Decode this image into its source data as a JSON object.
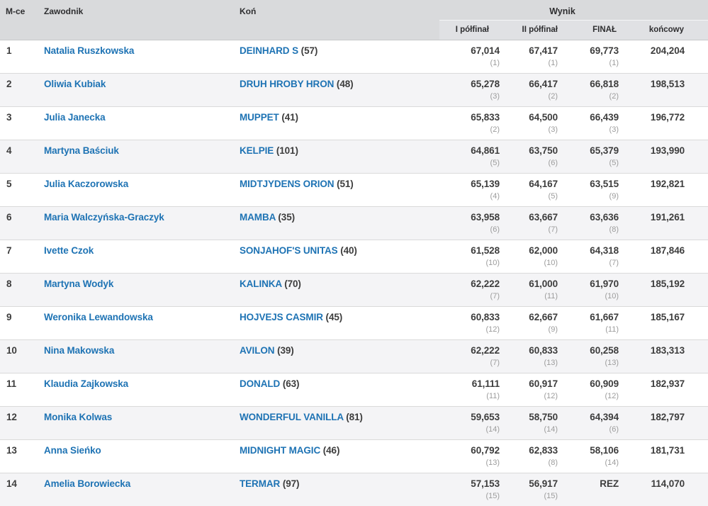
{
  "header": {
    "place": "M-ce",
    "rider": "Zawodnik",
    "horse": "Koń",
    "result_group": "Wynik",
    "sub": {
      "semi1": "I półfinał",
      "semi2": "II półfinał",
      "final": "FINAŁ",
      "total": "końcowy"
    }
  },
  "colors": {
    "link": "#1e73b4",
    "header_bg": "#d9dadc",
    "subheader_bg": "#e0e1e4",
    "stripe": "#f4f4f6",
    "row_border": "#dadada",
    "value_text": "#3d3d3d",
    "rank_text": "#9c9c9c"
  },
  "rows": [
    {
      "place": "1",
      "rider": "Natalia Ruszkowska",
      "horse": "DEINHARD S",
      "horse_no": "(57)",
      "semi1": "67,014",
      "semi1_rank": "(1)",
      "semi2": "67,417",
      "semi2_rank": "(1)",
      "final": "69,773",
      "final_rank": "(1)",
      "total": "204,204"
    },
    {
      "place": "2",
      "rider": "Oliwia Kubiak",
      "horse": "DRUH HROBY HRON",
      "horse_no": "(48)",
      "semi1": "65,278",
      "semi1_rank": "(3)",
      "semi2": "66,417",
      "semi2_rank": "(2)",
      "final": "66,818",
      "final_rank": "(2)",
      "total": "198,513"
    },
    {
      "place": "3",
      "rider": "Julia Janecka",
      "horse": "MUPPET",
      "horse_no": "(41)",
      "semi1": "65,833",
      "semi1_rank": "(2)",
      "semi2": "64,500",
      "semi2_rank": "(3)",
      "final": "66,439",
      "final_rank": "(3)",
      "total": "196,772"
    },
    {
      "place": "4",
      "rider": "Martyna Baściuk",
      "horse": "KELPIE",
      "horse_no": "(101)",
      "semi1": "64,861",
      "semi1_rank": "(5)",
      "semi2": "63,750",
      "semi2_rank": "(6)",
      "final": "65,379",
      "final_rank": "(5)",
      "total": "193,990"
    },
    {
      "place": "5",
      "rider": "Julia Kaczorowska",
      "horse": "MIDTJYDENS ORION",
      "horse_no": "(51)",
      "semi1": "65,139",
      "semi1_rank": "(4)",
      "semi2": "64,167",
      "semi2_rank": "(5)",
      "final": "63,515",
      "final_rank": "(9)",
      "total": "192,821"
    },
    {
      "place": "6",
      "rider": "Maria Walczyńska-Graczyk",
      "horse": "MAMBA",
      "horse_no": "(35)",
      "semi1": "63,958",
      "semi1_rank": "(6)",
      "semi2": "63,667",
      "semi2_rank": "(7)",
      "final": "63,636",
      "final_rank": "(8)",
      "total": "191,261"
    },
    {
      "place": "7",
      "rider": "Ivette Czok",
      "horse": "SONJAHOF'S UNITAS",
      "horse_no": "(40)",
      "semi1": "61,528",
      "semi1_rank": "(10)",
      "semi2": "62,000",
      "semi2_rank": "(10)",
      "final": "64,318",
      "final_rank": "(7)",
      "total": "187,846"
    },
    {
      "place": "8",
      "rider": "Martyna Wodyk",
      "horse": "KALINKA",
      "horse_no": "(70)",
      "semi1": "62,222",
      "semi1_rank": "(7)",
      "semi2": "61,000",
      "semi2_rank": "(11)",
      "final": "61,970",
      "final_rank": "(10)",
      "total": "185,192"
    },
    {
      "place": "9",
      "rider": "Weronika Lewandowska",
      "horse": "HOJVEJS CASMIR",
      "horse_no": "(45)",
      "semi1": "60,833",
      "semi1_rank": "(12)",
      "semi2": "62,667",
      "semi2_rank": "(9)",
      "final": "61,667",
      "final_rank": "(11)",
      "total": "185,167"
    },
    {
      "place": "10",
      "rider": "Nina Makowska",
      "horse": "AVILON",
      "horse_no": "(39)",
      "semi1": "62,222",
      "semi1_rank": "(7)",
      "semi2": "60,833",
      "semi2_rank": "(13)",
      "final": "60,258",
      "final_rank": "(13)",
      "total": "183,313"
    },
    {
      "place": "11",
      "rider": "Klaudia Zajkowska",
      "horse": "DONALD",
      "horse_no": "(63)",
      "semi1": "61,111",
      "semi1_rank": "(11)",
      "semi2": "60,917",
      "semi2_rank": "(12)",
      "final": "60,909",
      "final_rank": "(12)",
      "total": "182,937"
    },
    {
      "place": "12",
      "rider": "Monika Kolwas",
      "horse": "WONDERFUL VANILLA",
      "horse_no": "(81)",
      "semi1": "59,653",
      "semi1_rank": "(14)",
      "semi2": "58,750",
      "semi2_rank": "(14)",
      "final": "64,394",
      "final_rank": "(6)",
      "total": "182,797"
    },
    {
      "place": "13",
      "rider": "Anna Sieńko",
      "horse": "MIDNIGHT MAGIC",
      "horse_no": "(46)",
      "semi1": "60,792",
      "semi1_rank": "(13)",
      "semi2": "62,833",
      "semi2_rank": "(8)",
      "final": "58,106",
      "final_rank": "(14)",
      "total": "181,731"
    },
    {
      "place": "14",
      "rider": "Amelia Borowiecka",
      "horse": "TERMAR",
      "horse_no": "(97)",
      "semi1": "57,153",
      "semi1_rank": "(15)",
      "semi2": "56,917",
      "semi2_rank": "(15)",
      "final": "REZ",
      "final_rank": "",
      "total": "114,070"
    }
  ]
}
